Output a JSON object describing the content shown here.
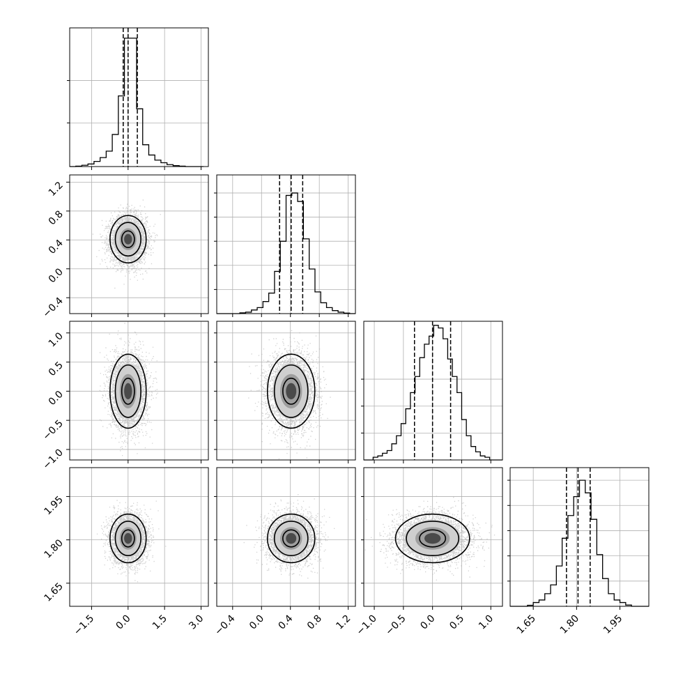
{
  "chart_data": {
    "type": "corner",
    "parameters": [
      {
        "range": [
          -2.4,
          3.3
        ],
        "ticks": [
          -1.5,
          0.0,
          1.5,
          3.0
        ],
        "tick_labels": [
          "−1.5",
          "0.0",
          "1.5",
          "3.0"
        ],
        "median": 0.0,
        "q16": -0.2,
        "q84": 0.38
      },
      {
        "range": [
          -0.62,
          1.3
        ],
        "ticks": [
          -0.4,
          0.0,
          0.4,
          0.8,
          1.2
        ],
        "tick_labels": [
          "−0.4",
          "0.0",
          "0.4",
          "0.8",
          "1.2"
        ],
        "median": 0.41,
        "q16": 0.25,
        "q84": 0.57
      },
      {
        "range": [
          -1.18,
          1.2
        ],
        "ticks": [
          -1.0,
          -0.5,
          0.0,
          0.5,
          1.0
        ],
        "tick_labels": [
          "−1.0",
          "−0.5",
          "0.0",
          "0.5",
          "1.0"
        ],
        "median": 0.0,
        "q16": -0.31,
        "q84": 0.31
      },
      {
        "range": [
          1.57,
          2.05
        ],
        "ticks": [
          1.65,
          1.8,
          1.95
        ],
        "tick_labels": [
          "1.65",
          "1.80",
          "1.95"
        ],
        "median": 1.805,
        "q16": 1.765,
        "q84": 1.847
      }
    ],
    "diagonal_histograms": [
      {
        "edges": [
          -2.4,
          -2.15,
          -1.9,
          -1.65,
          -1.4,
          -1.15,
          -0.9,
          -0.65,
          -0.4,
          -0.15,
          0.1,
          0.35,
          0.6,
          0.85,
          1.1,
          1.35,
          1.6,
          1.85,
          2.1,
          2.35,
          2.6,
          2.85,
          3.1
        ],
        "counts": [
          0.0,
          0.003,
          0.01,
          0.02,
          0.04,
          0.07,
          0.12,
          0.25,
          0.55,
          1.0,
          1.0,
          0.45,
          0.17,
          0.09,
          0.05,
          0.03,
          0.015,
          0.007,
          0.003,
          0.0,
          0.0,
          0.0
        ],
        "ylim": [
          0,
          1.08
        ],
        "yticks": [
          0.34,
          0.67
        ]
      },
      {
        "edges": [
          -0.62,
          -0.54,
          -0.46,
          -0.38,
          -0.3,
          -0.22,
          -0.14,
          -0.06,
          0.02,
          0.1,
          0.18,
          0.26,
          0.34,
          0.42,
          0.5,
          0.58,
          0.66,
          0.74,
          0.82,
          0.9,
          0.98,
          1.06,
          1.14,
          1.22,
          1.3
        ],
        "counts": [
          0.0,
          0.0,
          0.0,
          0.0,
          0.006,
          0.012,
          0.03,
          0.05,
          0.1,
          0.17,
          0.35,
          0.6,
          0.98,
          1.0,
          0.93,
          0.62,
          0.37,
          0.18,
          0.09,
          0.05,
          0.025,
          0.012,
          0.004,
          0.0
        ],
        "ylim": [
          0,
          1.15
        ],
        "yticks": [
          0.2,
          0.4,
          0.6,
          0.8,
          1.0
        ]
      },
      {
        "edges": [
          -1.18,
          -1.1,
          -1.02,
          -0.94,
          -0.86,
          -0.78,
          -0.7,
          -0.62,
          -0.54,
          -0.46,
          -0.38,
          -0.3,
          -0.22,
          -0.14,
          -0.06,
          0.02,
          0.1,
          0.18,
          0.26,
          0.34,
          0.42,
          0.5,
          0.58,
          0.66,
          0.74,
          0.82,
          0.9,
          0.98,
          1.06,
          1.14,
          1.2
        ],
        "counts": [
          0.0,
          0.0,
          0.02,
          0.03,
          0.05,
          0.07,
          0.12,
          0.18,
          0.27,
          0.38,
          0.5,
          0.62,
          0.76,
          0.86,
          0.92,
          1.0,
          0.98,
          0.9,
          0.75,
          0.62,
          0.5,
          0.3,
          0.18,
          0.1,
          0.06,
          0.03,
          0.02,
          0.0,
          0.0,
          0.0
        ],
        "ylim": [
          0,
          1.03
        ],
        "yticks": [
          0.6,
          0.2,
          0.4
        ]
      },
      {
        "edges": [
          1.57,
          1.59,
          1.61,
          1.63,
          1.65,
          1.67,
          1.69,
          1.71,
          1.73,
          1.75,
          1.77,
          1.79,
          1.81,
          1.83,
          1.85,
          1.87,
          1.89,
          1.91,
          1.93,
          1.95,
          1.97,
          1.99,
          2.01,
          2.03,
          2.05
        ],
        "counts": [
          0.0,
          0.0,
          0.0,
          0.008,
          0.03,
          0.05,
          0.1,
          0.17,
          0.32,
          0.54,
          0.72,
          0.87,
          1.0,
          0.9,
          0.69,
          0.41,
          0.22,
          0.1,
          0.05,
          0.03,
          0.01,
          0.0,
          0.0,
          0.0
        ],
        "ylim": [
          0,
          1.1
        ],
        "yticks": [
          0.2,
          0.4,
          0.6,
          0.8,
          1.0
        ]
      }
    ],
    "correlation_points_per_panel": 4500,
    "grid": true
  }
}
